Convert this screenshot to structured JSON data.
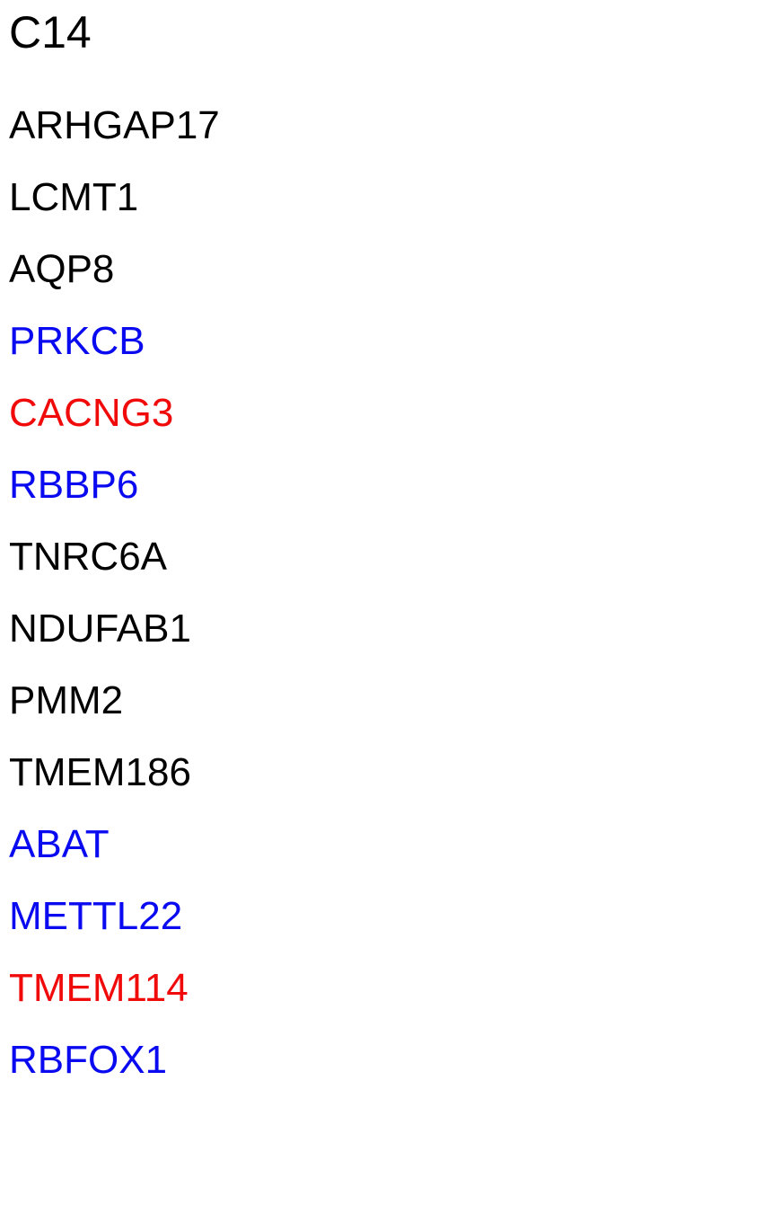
{
  "title": "C14",
  "colors": {
    "black": "#000000",
    "blue": "#0a0af0",
    "red": "#f00a0a"
  },
  "genes": [
    {
      "name": "ARHGAP17",
      "color": "black"
    },
    {
      "name": "LCMT1",
      "color": "black"
    },
    {
      "name": "AQP8",
      "color": "black"
    },
    {
      "name": "PRKCB",
      "color": "blue"
    },
    {
      "name": "CACNG3",
      "color": "red"
    },
    {
      "name": "RBBP6",
      "color": "blue"
    },
    {
      "name": "TNRC6A",
      "color": "black"
    },
    {
      "name": "NDUFAB1",
      "color": "black"
    },
    {
      "name": "PMM2",
      "color": "black"
    },
    {
      "name": "TMEM186",
      "color": "black"
    },
    {
      "name": "ABAT",
      "color": "blue"
    },
    {
      "name": "METTL22",
      "color": "blue"
    },
    {
      "name": "TMEM114",
      "color": "red"
    },
    {
      "name": "RBFOX1",
      "color": "blue"
    }
  ]
}
